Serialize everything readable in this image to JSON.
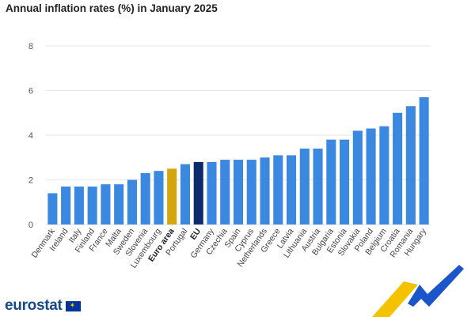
{
  "title": "Annual inflation rates (%) in January 2025",
  "brand": {
    "name": "eurostat"
  },
  "colors": {
    "default_bar": "#3a88e0",
    "euro_area_bar": "#d4a60a",
    "eu_bar": "#0d2a6e",
    "ribbon_yellow": "#f5c200",
    "ribbon_blue": "#1a56c9"
  },
  "chart_data": {
    "type": "bar",
    "categories": [
      "Denmark",
      "Ireland",
      "Italy",
      "Finland",
      "France",
      "Malta",
      "Sweden",
      "Slovenia",
      "Luxembourg",
      "Euro area",
      "Portugal",
      "EU",
      "Germany",
      "Czechia",
      "Spain",
      "Cyprus",
      "Netherlands",
      "Greece",
      "Latvia",
      "Lithuania",
      "Austria",
      "Bulgaria",
      "Estonia",
      "Slovakia",
      "Poland",
      "Belgium",
      "Croatia",
      "Romania",
      "Hungary"
    ],
    "values": [
      1.4,
      1.7,
      1.7,
      1.7,
      1.8,
      1.8,
      2.0,
      2.3,
      2.4,
      2.5,
      2.7,
      2.8,
      2.8,
      2.9,
      2.9,
      2.9,
      3.0,
      3.1,
      3.1,
      3.4,
      3.4,
      3.8,
      3.8,
      4.2,
      4.3,
      4.4,
      5.0,
      5.3,
      5.7
    ],
    "highlight": {
      "Euro area": "euro_area_bar",
      "EU": "eu_bar"
    },
    "bold_categories": [
      "Euro area",
      "EU"
    ],
    "yticks": [
      0,
      2,
      4,
      6,
      8
    ],
    "ylim": [
      0,
      8
    ],
    "grid": true,
    "xlabel": "",
    "ylabel": ""
  }
}
